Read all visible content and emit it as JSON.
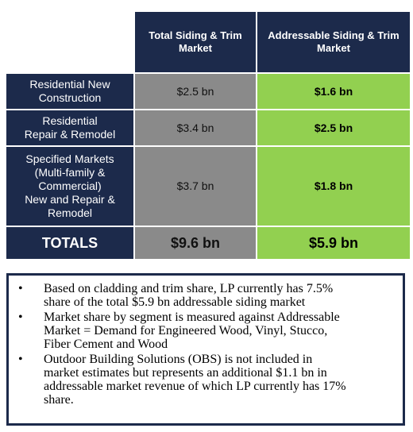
{
  "table": {
    "columns": [
      "Total Siding & Trim\nMarket",
      "Addressable Siding & Trim\nMarket"
    ],
    "rows": [
      {
        "label": "Residential New\nConstruction",
        "total": "$2.5 bn",
        "addressable": "$1.6 bn"
      },
      {
        "label": "Residential\nRepair & Remodel",
        "total": "$3.4 bn",
        "addressable": "$2.5 bn"
      },
      {
        "label": "Specified Markets\n(Multi-family &\nCommercial)\nNew and Repair &\nRemodel",
        "total": "$3.7 bn",
        "addressable": "$1.8 bn"
      }
    ],
    "totals": {
      "label": "TOTALS",
      "total": "$9.6 bn",
      "addressable": "$5.9 bn"
    }
  },
  "notes": [
    "Based on cladding and trim share, LP currently has 7.5%\nshare of the total $5.9 bn addressable siding market",
    "Market share by segment is measured against Addressable\nMarket = Demand for Engineered Wood, Vinyl,  Stucco,\nFiber Cement and Wood",
    "Outdoor Building Solutions (OBS) is not included in\nmarket estimates but represents an additional $1.1 bn in\naddressable market revenue of which LP currently has 17%\nshare."
  ]
}
